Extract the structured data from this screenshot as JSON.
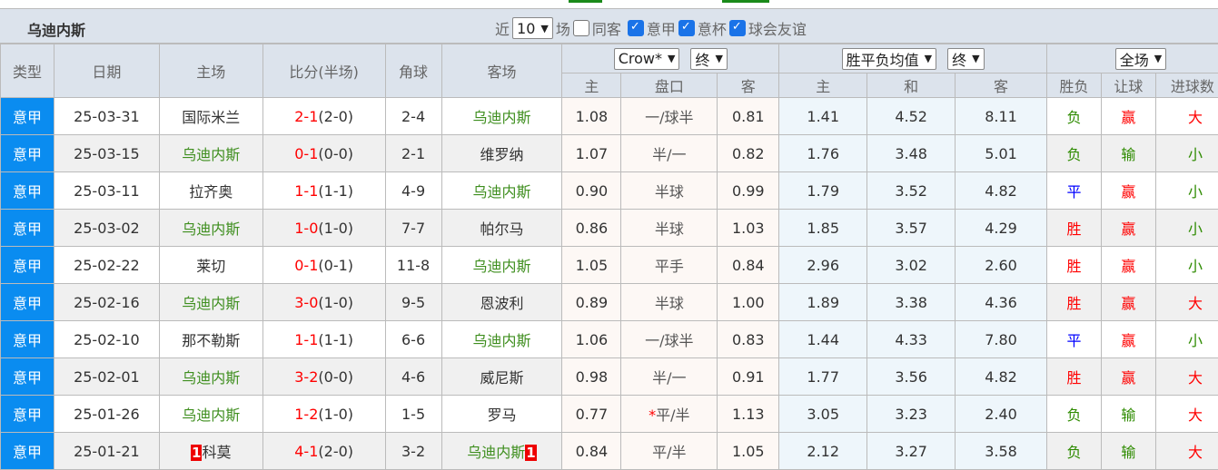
{
  "team": "乌迪内斯",
  "filters": {
    "near": "近",
    "count": "10",
    "games": "场",
    "same_away": "同客",
    "same_away_checked": false,
    "leagues": [
      {
        "label": "意甲",
        "checked": true
      },
      {
        "label": "意杯",
        "checked": true
      },
      {
        "label": "球会友谊",
        "checked": true
      }
    ]
  },
  "headers": {
    "type": "类型",
    "date": "日期",
    "home": "主场",
    "score": "比分(半场)",
    "corner": "角球",
    "away": "客场",
    "ah_company": "Crow*",
    "ah_stage": "终",
    "eu_company": "胜平负均值",
    "eu_stage": "终",
    "period": "全场",
    "ah_home": "主",
    "ah_line": "盘口",
    "ah_away": "客",
    "eu_home": "主",
    "eu_draw": "和",
    "eu_away": "客",
    "wdl": "胜负",
    "handicap": "让球",
    "goals": "进球数"
  },
  "rows": [
    {
      "type": "意甲",
      "date": "25-03-31",
      "home": "国际米兰",
      "score": "2-1",
      "half": "(2-0)",
      "corner": "2-4",
      "away": "乌迪内斯",
      "ah_h": "1.08",
      "line": "一/球半",
      "ah_a": "0.81",
      "eu_h": "1.41",
      "eu_d": "4.52",
      "eu_a": "8.11",
      "wdl": "负",
      "hc": "赢",
      "goals": "大",
      "hr": "",
      "ar": ""
    },
    {
      "type": "意甲",
      "date": "25-03-15",
      "home": "乌迪内斯",
      "score": "0-1",
      "half": "(0-0)",
      "corner": "2-1",
      "away": "维罗纳",
      "ah_h": "1.07",
      "line": "半/一",
      "ah_a": "0.82",
      "eu_h": "1.76",
      "eu_d": "3.48",
      "eu_a": "5.01",
      "wdl": "负",
      "hc": "输",
      "goals": "小",
      "hr": "",
      "ar": ""
    },
    {
      "type": "意甲",
      "date": "25-03-11",
      "home": "拉齐奥",
      "score": "1-1",
      "half": "(1-1)",
      "corner": "4-9",
      "away": "乌迪内斯",
      "ah_h": "0.90",
      "line": "半球",
      "ah_a": "0.99",
      "eu_h": "1.79",
      "eu_d": "3.52",
      "eu_a": "4.82",
      "wdl": "平",
      "hc": "赢",
      "goals": "小",
      "hr": "",
      "ar": ""
    },
    {
      "type": "意甲",
      "date": "25-03-02",
      "home": "乌迪内斯",
      "score": "1-0",
      "half": "(1-0)",
      "corner": "7-7",
      "away": "帕尔马",
      "ah_h": "0.86",
      "line": "半球",
      "ah_a": "1.03",
      "eu_h": "1.85",
      "eu_d": "3.57",
      "eu_a": "4.29",
      "wdl": "胜",
      "hc": "赢",
      "goals": "小",
      "hr": "",
      "ar": ""
    },
    {
      "type": "意甲",
      "date": "25-02-22",
      "home": "莱切",
      "score": "0-1",
      "half": "(0-1)",
      "corner": "11-8",
      "away": "乌迪内斯",
      "ah_h": "1.05",
      "line": "平手",
      "ah_a": "0.84",
      "eu_h": "2.96",
      "eu_d": "3.02",
      "eu_a": "2.60",
      "wdl": "胜",
      "hc": "赢",
      "goals": "小",
      "hr": "",
      "ar": ""
    },
    {
      "type": "意甲",
      "date": "25-02-16",
      "home": "乌迪内斯",
      "score": "3-0",
      "half": "(1-0)",
      "corner": "9-5",
      "away": "恩波利",
      "ah_h": "0.89",
      "line": "半球",
      "ah_a": "1.00",
      "eu_h": "1.89",
      "eu_d": "3.38",
      "eu_a": "4.36",
      "wdl": "胜",
      "hc": "赢",
      "goals": "大",
      "hr": "",
      "ar": ""
    },
    {
      "type": "意甲",
      "date": "25-02-10",
      "home": "那不勒斯",
      "score": "1-1",
      "half": "(1-1)",
      "corner": "6-6",
      "away": "乌迪内斯",
      "ah_h": "1.06",
      "line": "一/球半",
      "ah_a": "0.83",
      "eu_h": "1.44",
      "eu_d": "4.33",
      "eu_a": "7.80",
      "wdl": "平",
      "hc": "赢",
      "goals": "小",
      "hr": "",
      "ar": ""
    },
    {
      "type": "意甲",
      "date": "25-02-01",
      "home": "乌迪内斯",
      "score": "3-2",
      "half": "(0-0)",
      "corner": "4-6",
      "away": "威尼斯",
      "ah_h": "0.98",
      "line": "半/一",
      "ah_a": "0.91",
      "eu_h": "1.77",
      "eu_d": "3.56",
      "eu_a": "4.82",
      "wdl": "胜",
      "hc": "赢",
      "goals": "大",
      "hr": "",
      "ar": ""
    },
    {
      "type": "意甲",
      "date": "25-01-26",
      "home": "乌迪内斯",
      "score": "1-2",
      "half": "(1-0)",
      "corner": "1-5",
      "away": "罗马",
      "ah_h": "0.77",
      "line": "平/半",
      "line_prefix": "*",
      "ah_a": "1.13",
      "eu_h": "3.05",
      "eu_d": "3.23",
      "eu_a": "2.40",
      "wdl": "负",
      "hc": "输",
      "goals": "大",
      "hr": "",
      "ar": ""
    },
    {
      "type": "意甲",
      "date": "25-01-21",
      "home": "科莫",
      "score": "4-1",
      "half": "(2-0)",
      "corner": "3-2",
      "away": "乌迪内斯",
      "ah_h": "0.84",
      "line": "平/半",
      "ah_a": "1.05",
      "eu_h": "2.12",
      "eu_d": "3.27",
      "eu_a": "3.58",
      "wdl": "负",
      "hc": "输",
      "goals": "大",
      "hr": "1",
      "ar": "1"
    }
  ],
  "colors": {
    "win": "#ff0000",
    "draw": "#0000ff",
    "loss": "#2e8b00",
    "type_bg": "#0a8cf0",
    "header_bg": "#dce3ec"
  }
}
